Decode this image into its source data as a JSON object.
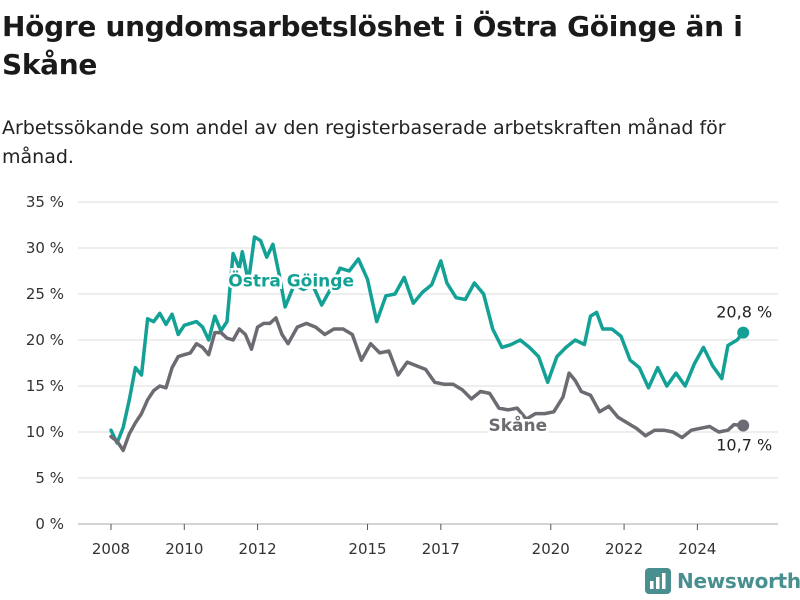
{
  "title": "Högre ungdomsarbetslöshet i Östra Göinge än i Skåne",
  "subtitle": "Arbetssökande som andel av den registerbaserade arbetskraften månad för månad.",
  "brand": {
    "name": "Newsworthy",
    "icon": "newsworthy-logo-icon"
  },
  "colors": {
    "ostra": "#13a196",
    "skane": "#6d6a72",
    "grid": "#dcdcdc",
    "brand": "#4a8f8f"
  },
  "chart_data": {
    "type": "line",
    "title": "Högre ungdomsarbetslöshet i Östra Göinge än i Skåne",
    "subtitle": "Arbetssökande som andel av den registerbaserade arbetskraften månad för månad.",
    "xlabel": "",
    "ylabel": "",
    "ylim": [
      0,
      35
    ],
    "yticks": [
      0,
      5,
      10,
      15,
      20,
      25,
      30,
      35
    ],
    "ytick_labels": [
      "0 %",
      "5 %",
      "10 %",
      "15 %",
      "20 %",
      "25 %",
      "30 %",
      "35 %"
    ],
    "xticks": [
      2008,
      2010,
      2012,
      2015,
      2017,
      2020,
      2022,
      2024
    ],
    "xtick_labels": [
      "2008",
      "2010",
      "2012",
      "2015",
      "2017",
      "2020",
      "2022",
      "2024"
    ],
    "grid": true,
    "legend": "inline",
    "series": [
      {
        "name": "Östra Göinge",
        "color": "#13a196",
        "end_label": "20,8 %",
        "points": [
          [
            "2008-01",
            10.2
          ],
          [
            "2008-03",
            8.8
          ],
          [
            "2008-05",
            10.5
          ],
          [
            "2008-07",
            13.5
          ],
          [
            "2008-09",
            17.0
          ],
          [
            "2008-11",
            16.2
          ],
          [
            "2009-01",
            22.3
          ],
          [
            "2009-03",
            22.0
          ],
          [
            "2009-05",
            22.9
          ],
          [
            "2009-07",
            21.7
          ],
          [
            "2009-09",
            22.8
          ],
          [
            "2009-11",
            20.6
          ],
          [
            "2010-01",
            21.6
          ],
          [
            "2010-03",
            21.8
          ],
          [
            "2010-05",
            22.0
          ],
          [
            "2010-07",
            21.4
          ],
          [
            "2010-09",
            20.0
          ],
          [
            "2010-11",
            22.6
          ],
          [
            "2011-01",
            21.0
          ],
          [
            "2011-03",
            22.0
          ],
          [
            "2011-05",
            29.4
          ],
          [
            "2011-07",
            27.8
          ],
          [
            "2011-08",
            29.6
          ],
          [
            "2011-10",
            26.3
          ],
          [
            "2011-12",
            31.2
          ],
          [
            "2012-02",
            30.8
          ],
          [
            "2012-04",
            29.0
          ],
          [
            "2012-06",
            30.4
          ],
          [
            "2012-08",
            27.2
          ],
          [
            "2012-10",
            23.6
          ],
          [
            "2013-01",
            26.0
          ],
          [
            "2013-04",
            25.5
          ],
          [
            "2013-07",
            26.0
          ],
          [
            "2013-10",
            23.8
          ],
          [
            "2014-01",
            25.6
          ],
          [
            "2014-04",
            27.8
          ],
          [
            "2014-07",
            27.5
          ],
          [
            "2014-10",
            28.8
          ],
          [
            "2015-01",
            26.6
          ],
          [
            "2015-04",
            22.0
          ],
          [
            "2015-07",
            24.8
          ],
          [
            "2015-10",
            25.0
          ],
          [
            "2016-01",
            26.8
          ],
          [
            "2016-04",
            24.0
          ],
          [
            "2016-07",
            25.2
          ],
          [
            "2016-10",
            26.0
          ],
          [
            "2017-01",
            28.6
          ],
          [
            "2017-03",
            26.2
          ],
          [
            "2017-06",
            24.6
          ],
          [
            "2017-09",
            24.4
          ],
          [
            "2017-12",
            26.2
          ],
          [
            "2018-03",
            25.0
          ],
          [
            "2018-06",
            21.2
          ],
          [
            "2018-09",
            19.2
          ],
          [
            "2018-12",
            19.5
          ],
          [
            "2019-03",
            20.0
          ],
          [
            "2019-06",
            19.2
          ],
          [
            "2019-09",
            18.2
          ],
          [
            "2019-12",
            15.4
          ],
          [
            "2020-03",
            18.2
          ],
          [
            "2020-06",
            19.2
          ],
          [
            "2020-09",
            20.0
          ],
          [
            "2020-12",
            19.5
          ],
          [
            "2021-02",
            22.6
          ],
          [
            "2021-04",
            23.0
          ],
          [
            "2021-06",
            21.2
          ],
          [
            "2021-09",
            21.2
          ],
          [
            "2021-12",
            20.4
          ],
          [
            "2022-03",
            17.8
          ],
          [
            "2022-06",
            17.0
          ],
          [
            "2022-09",
            14.8
          ],
          [
            "2022-12",
            17.0
          ],
          [
            "2023-03",
            15.0
          ],
          [
            "2023-06",
            16.4
          ],
          [
            "2023-09",
            15.0
          ],
          [
            "2023-12",
            17.4
          ],
          [
            "2024-03",
            19.2
          ],
          [
            "2024-06",
            17.2
          ],
          [
            "2024-09",
            15.8
          ],
          [
            "2024-11",
            19.4
          ],
          [
            "2025-02",
            20.0
          ],
          [
            "2025-04",
            20.8
          ]
        ]
      },
      {
        "name": "Skåne",
        "color": "#6d6a72",
        "end_label": "10,7 %",
        "points": [
          [
            "2008-01",
            9.5
          ],
          [
            "2008-03",
            9.0
          ],
          [
            "2008-05",
            8.0
          ],
          [
            "2008-07",
            9.8
          ],
          [
            "2008-09",
            11.0
          ],
          [
            "2008-11",
            12.0
          ],
          [
            "2009-01",
            13.5
          ],
          [
            "2009-03",
            14.5
          ],
          [
            "2009-05",
            15.0
          ],
          [
            "2009-07",
            14.8
          ],
          [
            "2009-09",
            17.0
          ],
          [
            "2009-11",
            18.2
          ],
          [
            "2010-01",
            18.4
          ],
          [
            "2010-03",
            18.6
          ],
          [
            "2010-05",
            19.6
          ],
          [
            "2010-07",
            19.2
          ],
          [
            "2010-09",
            18.4
          ],
          [
            "2010-11",
            20.8
          ],
          [
            "2011-01",
            20.8
          ],
          [
            "2011-03",
            20.2
          ],
          [
            "2011-05",
            20.0
          ],
          [
            "2011-07",
            21.2
          ],
          [
            "2011-09",
            20.6
          ],
          [
            "2011-11",
            19.0
          ],
          [
            "2012-01",
            21.4
          ],
          [
            "2012-03",
            21.8
          ],
          [
            "2012-05",
            21.8
          ],
          [
            "2012-07",
            22.4
          ],
          [
            "2012-09",
            20.6
          ],
          [
            "2012-11",
            19.6
          ],
          [
            "2013-02",
            21.4
          ],
          [
            "2013-05",
            21.8
          ],
          [
            "2013-08",
            21.4
          ],
          [
            "2013-11",
            20.6
          ],
          [
            "2014-02",
            21.2
          ],
          [
            "2014-05",
            21.2
          ],
          [
            "2014-08",
            20.6
          ],
          [
            "2014-11",
            17.8
          ],
          [
            "2015-02",
            19.6
          ],
          [
            "2015-05",
            18.6
          ],
          [
            "2015-08",
            18.8
          ],
          [
            "2015-11",
            16.2
          ],
          [
            "2016-02",
            17.6
          ],
          [
            "2016-05",
            17.2
          ],
          [
            "2016-08",
            16.8
          ],
          [
            "2016-11",
            15.4
          ],
          [
            "2017-02",
            15.2
          ],
          [
            "2017-05",
            15.2
          ],
          [
            "2017-08",
            14.6
          ],
          [
            "2017-11",
            13.6
          ],
          [
            "2018-02",
            14.4
          ],
          [
            "2018-05",
            14.2
          ],
          [
            "2018-08",
            12.6
          ],
          [
            "2018-11",
            12.4
          ],
          [
            "2019-02",
            12.6
          ],
          [
            "2019-05",
            11.4
          ],
          [
            "2019-08",
            12.0
          ],
          [
            "2019-11",
            12.0
          ],
          [
            "2020-02",
            12.2
          ],
          [
            "2020-05",
            13.8
          ],
          [
            "2020-07",
            16.4
          ],
          [
            "2020-09",
            15.6
          ],
          [
            "2020-11",
            14.4
          ],
          [
            "2021-02",
            14.0
          ],
          [
            "2021-05",
            12.2
          ],
          [
            "2021-08",
            12.8
          ],
          [
            "2021-11",
            11.6
          ],
          [
            "2022-02",
            11.0
          ],
          [
            "2022-05",
            10.4
          ],
          [
            "2022-08",
            9.6
          ],
          [
            "2022-11",
            10.2
          ],
          [
            "2023-02",
            10.2
          ],
          [
            "2023-05",
            10.0
          ],
          [
            "2023-08",
            9.4
          ],
          [
            "2023-11",
            10.2
          ],
          [
            "2024-02",
            10.4
          ],
          [
            "2024-05",
            10.6
          ],
          [
            "2024-08",
            10.0
          ],
          [
            "2024-11",
            10.2
          ],
          [
            "2025-01",
            10.8
          ],
          [
            "2025-04",
            10.7
          ]
        ]
      }
    ]
  }
}
